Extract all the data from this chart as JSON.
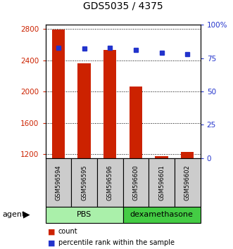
{
  "title": "GDS5035 / 4375",
  "samples": [
    "GSM596594",
    "GSM596595",
    "GSM596596",
    "GSM596600",
    "GSM596601",
    "GSM596602"
  ],
  "counts": [
    2790,
    2360,
    2530,
    2060,
    1175,
    1225
  ],
  "percentiles": [
    83,
    82,
    83,
    81,
    79,
    78
  ],
  "groups": [
    {
      "label": "PBS",
      "n": 3,
      "color": "#aaf0aa"
    },
    {
      "label": "dexamethasone",
      "n": 3,
      "color": "#44cc44"
    }
  ],
  "ylim_left": [
    1150,
    2850
  ],
  "ylim_right": [
    0,
    100
  ],
  "yticks_left": [
    1200,
    1600,
    2000,
    2400,
    2800
  ],
  "yticks_right": [
    0,
    25,
    50,
    75,
    100
  ],
  "yticklabels_right": [
    "0",
    "25",
    "50",
    "75",
    "100%"
  ],
  "bar_color": "#cc2200",
  "dot_color": "#2233cc",
  "bar_width": 0.5,
  "agent_label": "agent",
  "legend_count_label": "count",
  "legend_percentile_label": "percentile rank within the sample",
  "left_tick_color": "#cc2200",
  "right_tick_color": "#2233cc",
  "sample_box_color": "#cccccc",
  "base_count": 1150,
  "title_fontsize": 10,
  "tick_fontsize": 7.5,
  "sample_fontsize": 6,
  "group_fontsize": 8,
  "legend_fontsize": 7,
  "agent_fontsize": 8
}
